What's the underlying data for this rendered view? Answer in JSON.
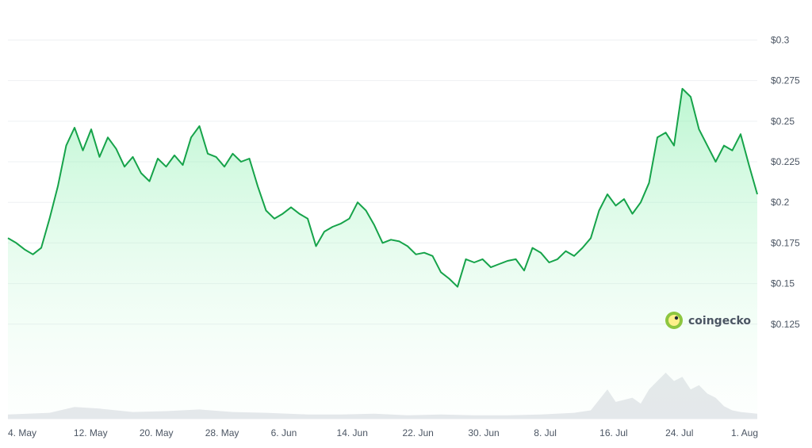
{
  "chart_data": {
    "type": "area",
    "title": "",
    "xlabel": "",
    "ylabel": "",
    "ylim": [
      0.1,
      0.31
    ],
    "grid": true,
    "line_color": "#16a34a",
    "fill_color": "#bbf7d0",
    "volume_color": "#e5e7eb",
    "x_tick_labels": [
      "4. May",
      "12. May",
      "20. May",
      "28. May",
      "6. Jun",
      "14. Jun",
      "22. Jun",
      "30. Jun",
      "8. Jul",
      "16. Jul",
      "24. Jul",
      "1. Aug"
    ],
    "y_ticks": [
      {
        "value": 0.3,
        "label": "$0.3"
      },
      {
        "value": 0.275,
        "label": "$0.275"
      },
      {
        "value": 0.25,
        "label": "$0.25"
      },
      {
        "value": 0.225,
        "label": "$0.225"
      },
      {
        "value": 0.2,
        "label": "$0.2"
      },
      {
        "value": 0.175,
        "label": "$0.175"
      },
      {
        "value": 0.15,
        "label": "$0.15"
      },
      {
        "value": 0.125,
        "label": "$0.125"
      }
    ],
    "x_range": [
      "2024-05-03",
      "2024-08-01"
    ],
    "series": [
      {
        "points": [
          [
            "2024-05-03",
            0.178
          ],
          [
            "2024-05-04",
            0.175
          ],
          [
            "2024-05-05",
            0.171
          ],
          [
            "2024-05-06",
            0.168
          ],
          [
            "2024-05-07",
            0.172
          ],
          [
            "2024-05-08",
            0.19
          ],
          [
            "2024-05-09",
            0.21
          ],
          [
            "2024-05-10",
            0.235
          ],
          [
            "2024-05-11",
            0.246
          ],
          [
            "2024-05-12",
            0.232
          ],
          [
            "2024-05-13",
            0.245
          ],
          [
            "2024-05-14",
            0.228
          ],
          [
            "2024-05-15",
            0.24
          ],
          [
            "2024-05-16",
            0.233
          ],
          [
            "2024-05-17",
            0.222
          ],
          [
            "2024-05-18",
            0.228
          ],
          [
            "2024-05-19",
            0.218
          ],
          [
            "2024-05-20",
            0.213
          ],
          [
            "2024-05-21",
            0.227
          ],
          [
            "2024-05-22",
            0.222
          ],
          [
            "2024-05-23",
            0.229
          ],
          [
            "2024-05-24",
            0.223
          ],
          [
            "2024-05-25",
            0.24
          ],
          [
            "2024-05-26",
            0.247
          ],
          [
            "2024-05-27",
            0.23
          ],
          [
            "2024-05-28",
            0.228
          ],
          [
            "2024-05-29",
            0.222
          ],
          [
            "2024-05-30",
            0.23
          ],
          [
            "2024-05-31",
            0.225
          ],
          [
            "2024-06-01",
            0.227
          ],
          [
            "2024-06-02",
            0.21
          ],
          [
            "2024-06-03",
            0.195
          ],
          [
            "2024-06-04",
            0.19
          ],
          [
            "2024-06-05",
            0.193
          ],
          [
            "2024-06-06",
            0.197
          ],
          [
            "2024-06-07",
            0.193
          ],
          [
            "2024-06-08",
            0.19
          ],
          [
            "2024-06-09",
            0.173
          ],
          [
            "2024-06-10",
            0.182
          ],
          [
            "2024-06-11",
            0.185
          ],
          [
            "2024-06-12",
            0.187
          ],
          [
            "2024-06-13",
            0.19
          ],
          [
            "2024-06-14",
            0.2
          ],
          [
            "2024-06-15",
            0.195
          ],
          [
            "2024-06-16",
            0.186
          ],
          [
            "2024-06-17",
            0.175
          ],
          [
            "2024-06-18",
            0.177
          ],
          [
            "2024-06-19",
            0.176
          ],
          [
            "2024-06-20",
            0.173
          ],
          [
            "2024-06-21",
            0.168
          ],
          [
            "2024-06-22",
            0.169
          ],
          [
            "2024-06-23",
            0.167
          ],
          [
            "2024-06-24",
            0.157
          ],
          [
            "2024-06-25",
            0.153
          ],
          [
            "2024-06-26",
            0.148
          ],
          [
            "2024-06-27",
            0.165
          ],
          [
            "2024-06-28",
            0.163
          ],
          [
            "2024-06-29",
            0.165
          ],
          [
            "2024-06-30",
            0.16
          ],
          [
            "2024-07-01",
            0.162
          ],
          [
            "2024-07-02",
            0.164
          ],
          [
            "2024-07-03",
            0.165
          ],
          [
            "2024-07-04",
            0.158
          ],
          [
            "2024-07-05",
            0.172
          ],
          [
            "2024-07-06",
            0.169
          ],
          [
            "2024-07-07",
            0.163
          ],
          [
            "2024-07-08",
            0.165
          ],
          [
            "2024-07-09",
            0.17
          ],
          [
            "2024-07-10",
            0.167
          ],
          [
            "2024-07-11",
            0.172
          ],
          [
            "2024-07-12",
            0.178
          ],
          [
            "2024-07-13",
            0.195
          ],
          [
            "2024-07-14",
            0.205
          ],
          [
            "2024-07-15",
            0.198
          ],
          [
            "2024-07-16",
            0.202
          ],
          [
            "2024-07-17",
            0.193
          ],
          [
            "2024-07-18",
            0.2
          ],
          [
            "2024-07-19",
            0.212
          ],
          [
            "2024-07-20",
            0.24
          ],
          [
            "2024-07-21",
            0.243
          ],
          [
            "2024-07-22",
            0.235
          ],
          [
            "2024-07-23",
            0.27
          ],
          [
            "2024-07-24",
            0.265
          ],
          [
            "2024-07-25",
            0.245
          ],
          [
            "2024-07-26",
            0.235
          ],
          [
            "2024-07-27",
            0.225
          ],
          [
            "2024-07-28",
            0.235
          ],
          [
            "2024-07-29",
            0.232
          ],
          [
            "2024-07-30",
            0.242
          ],
          [
            "2024-07-31",
            0.223
          ],
          [
            "2024-08-01",
            0.205
          ]
        ],
        "volume": [
          [
            "2024-05-03",
            0.5
          ],
          [
            "2024-05-08",
            0.7
          ],
          [
            "2024-05-11",
            1.4
          ],
          [
            "2024-05-14",
            1.2
          ],
          [
            "2024-05-18",
            0.8
          ],
          [
            "2024-05-22",
            0.9
          ],
          [
            "2024-05-26",
            1.1
          ],
          [
            "2024-05-30",
            0.8
          ],
          [
            "2024-06-03",
            0.7
          ],
          [
            "2024-06-08",
            0.5
          ],
          [
            "2024-06-12",
            0.5
          ],
          [
            "2024-06-16",
            0.6
          ],
          [
            "2024-06-20",
            0.4
          ],
          [
            "2024-06-24",
            0.5
          ],
          [
            "2024-06-28",
            0.4
          ],
          [
            "2024-07-02",
            0.4
          ],
          [
            "2024-07-06",
            0.5
          ],
          [
            "2024-07-10",
            0.7
          ],
          [
            "2024-07-12",
            1.0
          ],
          [
            "2024-07-14",
            3.5
          ],
          [
            "2024-07-15",
            2.0
          ],
          [
            "2024-07-17",
            2.5
          ],
          [
            "2024-07-18",
            1.8
          ],
          [
            "2024-07-19",
            3.5
          ],
          [
            "2024-07-20",
            4.5
          ],
          [
            "2024-07-21",
            5.5
          ],
          [
            "2024-07-22",
            4.5
          ],
          [
            "2024-07-23",
            5.0
          ],
          [
            "2024-07-24",
            3.5
          ],
          [
            "2024-07-25",
            4.0
          ],
          [
            "2024-07-26",
            3.0
          ],
          [
            "2024-07-27",
            2.5
          ],
          [
            "2024-07-28",
            1.5
          ],
          [
            "2024-07-29",
            1.0
          ],
          [
            "2024-07-30",
            0.8
          ],
          [
            "2024-08-01",
            0.6
          ]
        ]
      }
    ]
  },
  "brand": {
    "name": "coingecko",
    "icon": "gecko-logo-icon"
  }
}
